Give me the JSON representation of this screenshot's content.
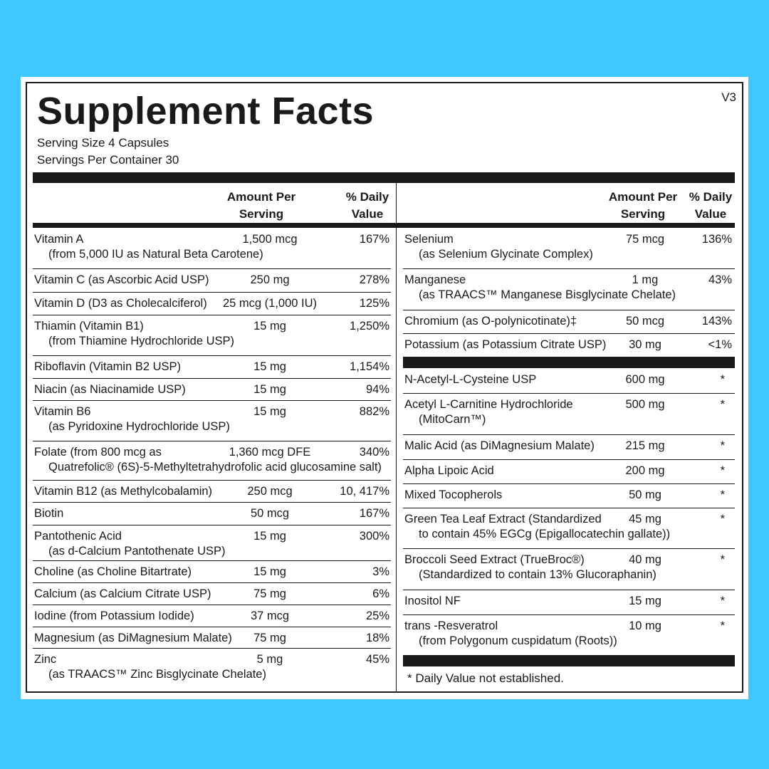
{
  "header": {
    "title": "Supplement Facts",
    "version": "V3",
    "serving_size": "Serving Size  4 Capsules",
    "servings_per_container": "Servings Per Container 30"
  },
  "columns": {
    "amount_line1": "Amount Per",
    "amount_line2": "Serving",
    "dv_line1": "% Daily",
    "dv_line2": "Value"
  },
  "left_rows": [
    {
      "name": "Vitamin A",
      "sub": "(from 5,000 IU as Natural Beta Carotene)",
      "amount": "1,500 mcg",
      "dv": "167%"
    },
    {
      "name": "Vitamin C (as Ascorbic Acid USP)",
      "sub": "",
      "amount": "250 mg",
      "dv": "278%"
    },
    {
      "name": "Vitamin D (D3 as Cholecalciferol)",
      "sub": "",
      "amount": "25 mcg (1,000 IU)",
      "dv": "125%"
    },
    {
      "name": "Thiamin (Vitamin B1)",
      "sub": "(from Thiamine Hydrochloride USP)",
      "amount": "15 mg",
      "dv": "1,250%"
    },
    {
      "name": "Riboflavin (Vitamin B2 USP)",
      "sub": "",
      "amount": "15 mg",
      "dv": "1,154%"
    },
    {
      "name": "Niacin (as Niacinamide USP)",
      "sub": "",
      "amount": "15 mg",
      "dv": "94%"
    },
    {
      "name": "Vitamin B6",
      "sub": "(as Pyridoxine Hydrochloride USP)",
      "amount": "15 mg",
      "dv": "882%"
    },
    {
      "name": "Folate (from 800 mcg as",
      "sub": "Quatrefolic® (6S)-5-Methyltetrahydrofolic acid glucosamine salt)",
      "amount": "1,360 mcg DFE",
      "dv": "340%"
    },
    {
      "name": "Vitamin B12 (as Methylcobalamin)",
      "sub": "",
      "amount": "250 mcg",
      "dv": "10, 417%"
    },
    {
      "name": "Biotin",
      "sub": "",
      "amount": "50 mcg",
      "dv": "167%"
    },
    {
      "name": "Pantothenic Acid",
      "sub": "(as d-Calcium Pantothenate USP)",
      "amount": "15 mg",
      "dv": "300%"
    },
    {
      "name": "Choline (as Choline Bitartrate)",
      "sub": "",
      "amount": "15 mg",
      "dv": "3%"
    },
    {
      "name": "Calcium (as Calcium Citrate USP)",
      "sub": "",
      "amount": "75 mg",
      "dv": "6%"
    },
    {
      "name": "Iodine (from Potassium Iodide)",
      "sub": "",
      "amount": "37 mcg",
      "dv": "25%"
    },
    {
      "name": "Magnesium (as DiMagnesium Malate)",
      "sub": "",
      "amount": "75 mg",
      "dv": "18%"
    },
    {
      "name": "Zinc",
      "sub": "(as TRAACS™ Zinc Bisglycinate Chelate)",
      "amount": "5 mg",
      "dv": "45%"
    }
  ],
  "right_rows_a": [
    {
      "name": "Selenium",
      "sub": "(as Selenium Glycinate Complex)",
      "amount": "75 mcg",
      "dv": "136%"
    },
    {
      "name": "Manganese",
      "sub": "(as TRAACS™ Manganese Bisglycinate Chelate)",
      "amount": "1 mg",
      "dv": "43%"
    },
    {
      "name": "Chromium (as O-polynicotinate)‡",
      "sub": "",
      "amount": "50 mcg",
      "dv": "143%"
    },
    {
      "name": "Potassium (as Potassium Citrate USP)",
      "sub": "",
      "amount": "30 mg",
      "dv": "<1%"
    }
  ],
  "right_rows_b": [
    {
      "name": "N-Acetyl-L-Cysteine USP",
      "sub": "",
      "amount": "600 mg",
      "dv": "*"
    },
    {
      "name": "Acetyl L-Carnitine Hydrochloride",
      "sub": "(MitoCarn™)",
      "amount": "500 mg",
      "dv": "*"
    },
    {
      "name": "Malic Acid (as DiMagnesium Malate)",
      "sub": "",
      "amount": "215 mg",
      "dv": "*"
    },
    {
      "name": "Alpha Lipoic Acid",
      "sub": "",
      "amount": "200 mg",
      "dv": "*"
    },
    {
      "name": "Mixed Tocopherols",
      "sub": "",
      "amount": "50 mg",
      "dv": "*"
    },
    {
      "name": "Green Tea Leaf Extract (Standardized",
      "sub": "to contain 45% EGCg (Epigallocatechin gallate))",
      "amount": "45 mg",
      "dv": "*"
    },
    {
      "name": "Broccoli Seed Extract (TrueBroc®)",
      "sub": "(Standardized to contain 13% Glucoraphanin)",
      "amount": "40 mg",
      "dv": "*"
    },
    {
      "name": "Inositol NF",
      "sub": "",
      "amount": "15 mg",
      "dv": "*"
    },
    {
      "name": "trans -Resveratrol",
      "sub": "(from Polygonum cuspidatum (Roots))",
      "amount": "10 mg",
      "dv": "*"
    }
  ],
  "footnote": "*  Daily Value not established."
}
